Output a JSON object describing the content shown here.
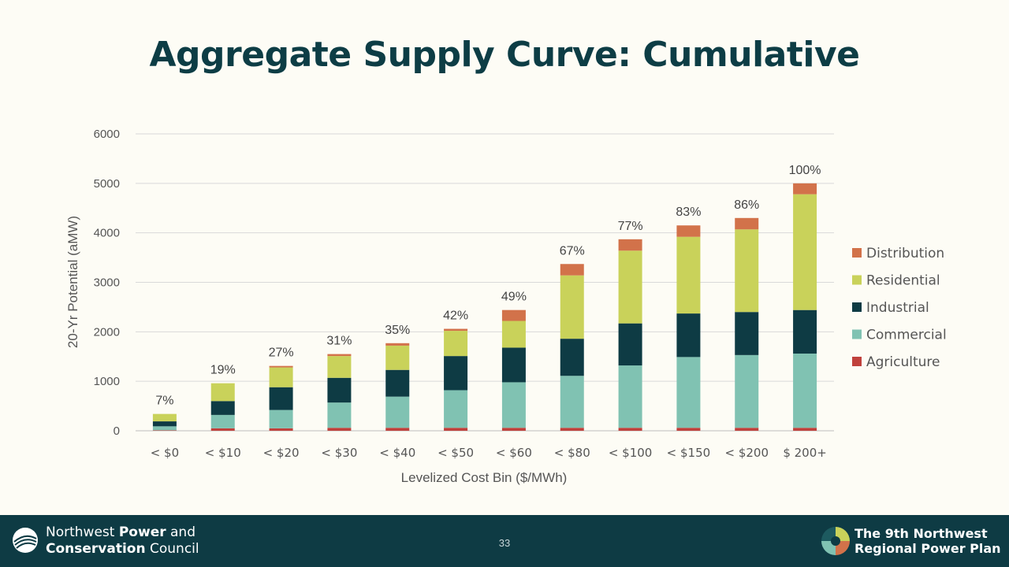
{
  "slide": {
    "title": "Aggregate Supply Curve: Cumulative",
    "page_number": "33"
  },
  "footer": {
    "council_line1_prefix": "Northwest ",
    "council_line1_bold": "Power",
    "council_line1_suffix": " and",
    "council_line2_bold": "Conservation",
    "council_line2_suffix": " Council",
    "plan_line1": "The 9th Northwest",
    "plan_line2": "Regional Power Plan"
  },
  "colors": {
    "Agriculture": "#c0413c",
    "Commercial": "#80c2b2",
    "Industrial": "#0e3b44",
    "Residential": "#c9d25a",
    "Distribution": "#d2724a",
    "title": "#0d3d45",
    "footer_bg": "#0e3b44"
  },
  "chart_data": {
    "type": "bar",
    "stacked": true,
    "xlabel": "Levelized Cost Bin ($/MWh)",
    "ylabel": "20-Yr Potential (aMW)",
    "ylim": [
      0,
      6000
    ],
    "yticks": [
      0,
      1000,
      2000,
      3000,
      4000,
      5000,
      6000
    ],
    "grid": true,
    "legend_position": "right",
    "categories": [
      "< $0",
      "< $10",
      "< $20",
      "< $30",
      "< $40",
      "< $50",
      "< $60",
      "< $80",
      "< $100",
      "< $150",
      "< $200",
      "$ 200+"
    ],
    "series": [
      {
        "name": "Agriculture",
        "values": [
          10,
          50,
          50,
          60,
          60,
          60,
          60,
          60,
          60,
          60,
          60,
          60
        ]
      },
      {
        "name": "Commercial",
        "values": [
          80,
          270,
          370,
          510,
          630,
          760,
          920,
          1050,
          1260,
          1430,
          1470,
          1500
        ]
      },
      {
        "name": "Industrial",
        "values": [
          100,
          280,
          460,
          500,
          540,
          690,
          700,
          750,
          850,
          880,
          870,
          880
        ]
      },
      {
        "name": "Residential",
        "values": [
          150,
          360,
          400,
          440,
          490,
          510,
          540,
          1280,
          1470,
          1550,
          1670,
          2340
        ]
      },
      {
        "name": "Distribution",
        "values": [
          0,
          0,
          30,
          40,
          50,
          40,
          220,
          230,
          230,
          230,
          230,
          220
        ]
      }
    ],
    "percent_labels": [
      "7%",
      "19%",
      "27%",
      "31%",
      "35%",
      "42%",
      "49%",
      "67%",
      "77%",
      "83%",
      "86%",
      "100%"
    ],
    "legend_order": [
      "Distribution",
      "Residential",
      "Industrial",
      "Commercial",
      "Agriculture"
    ]
  }
}
